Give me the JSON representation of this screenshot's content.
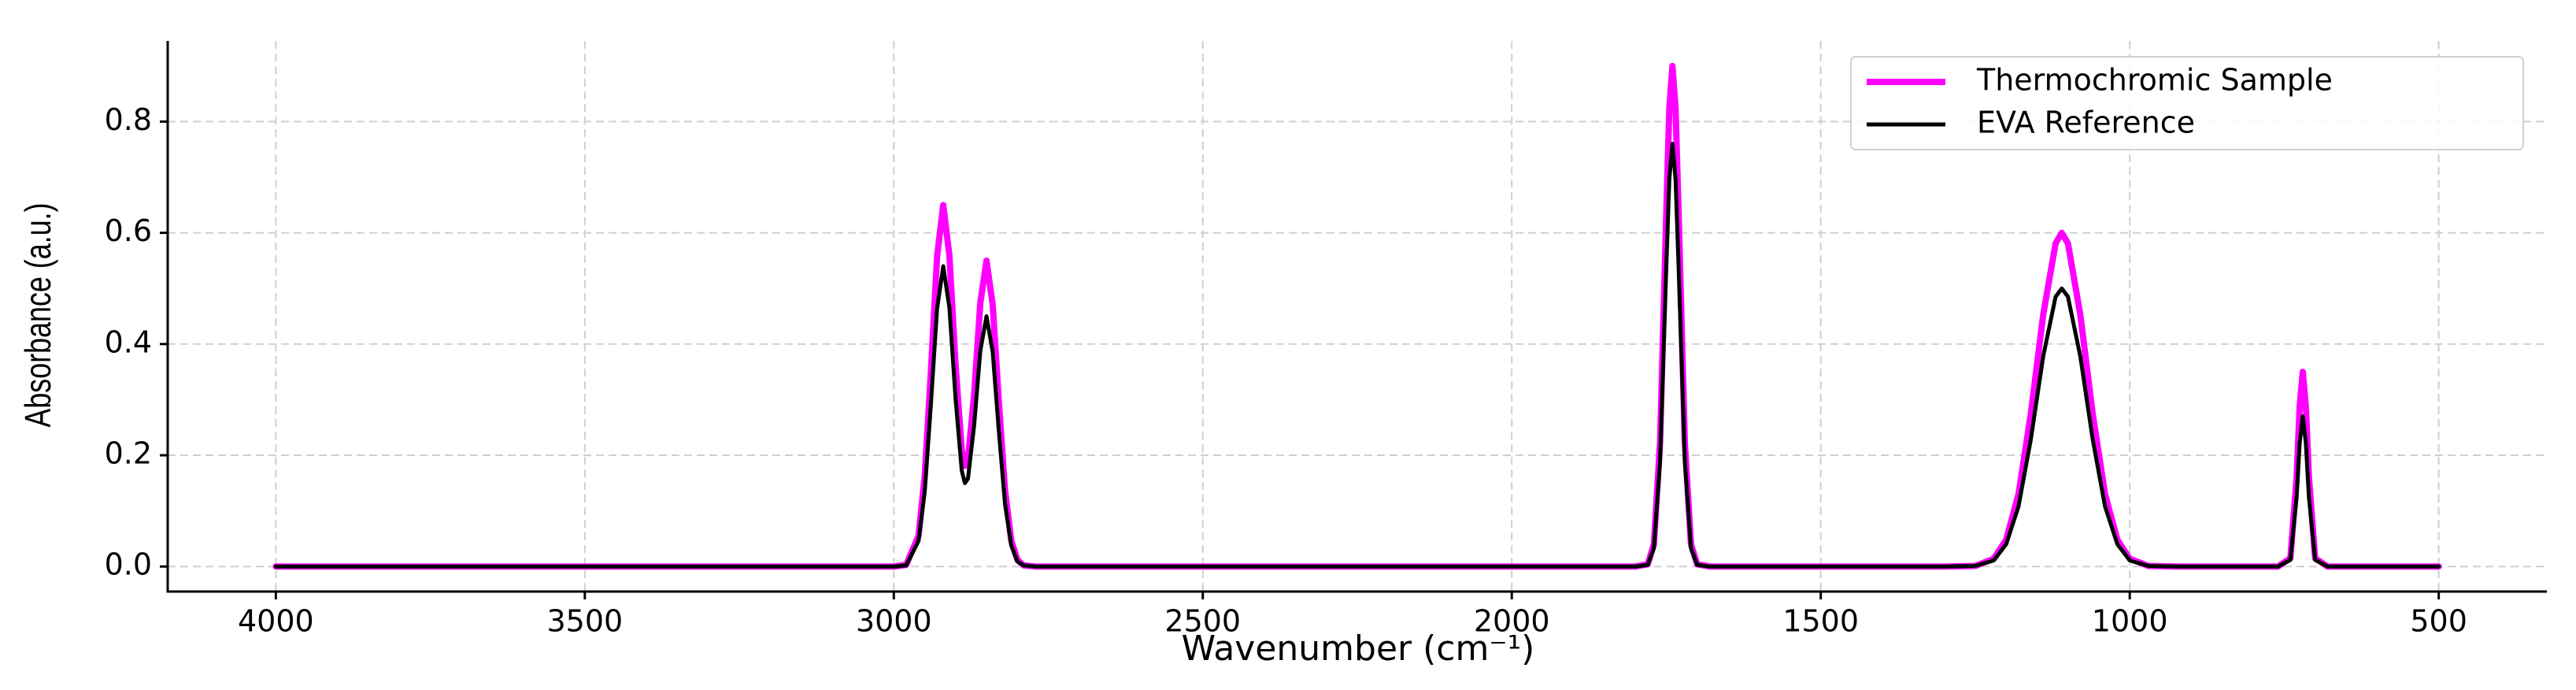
{
  "chart_data": {
    "type": "line",
    "xlabel": "Wavenumber (cm⁻¹)",
    "ylabel": "Absorbance (a.u.)",
    "x": [
      4000,
      3000,
      2980,
      2960,
      2950,
      2940,
      2930,
      2920,
      2910,
      2900,
      2890,
      2885,
      2880,
      2870,
      2860,
      2850,
      2840,
      2830,
      2820,
      2810,
      2800,
      2790,
      2770,
      1800,
      1780,
      1770,
      1760,
      1750,
      1745,
      1740,
      1735,
      1730,
      1720,
      1710,
      1700,
      1680,
      1300,
      1250,
      1220,
      1200,
      1180,
      1160,
      1140,
      1120,
      1110,
      1100,
      1080,
      1060,
      1040,
      1020,
      1000,
      970,
      920,
      760,
      740,
      730,
      725,
      720,
      715,
      710,
      700,
      680,
      500
    ],
    "series": [
      {
        "name": "Thermochromic Sample",
        "color": "#ff00ff",
        "values": [
          0,
          0,
          0.003,
          0.055,
          0.162,
          0.35,
          0.557,
          0.65,
          0.559,
          0.362,
          0.209,
          0.181,
          0.192,
          0.31,
          0.474,
          0.55,
          0.471,
          0.296,
          0.137,
          0.047,
          0.012,
          0.002,
          0,
          0,
          0.004,
          0.04,
          0.224,
          0.636,
          0.825,
          0.9,
          0.825,
          0.636,
          0.224,
          0.04,
          0.004,
          0,
          0,
          0.001,
          0.014,
          0.048,
          0.13,
          0.275,
          0.453,
          0.581,
          0.6,
          0.581,
          0.453,
          0.275,
          0.13,
          0.048,
          0.014,
          0.001,
          0,
          0,
          0.015,
          0.16,
          0.288,
          0.35,
          0.288,
          0.16,
          0.015,
          0,
          0
        ]
      },
      {
        "name": "EVA Reference",
        "color": "#000000",
        "values": [
          0,
          0,
          0.002,
          0.046,
          0.134,
          0.291,
          0.463,
          0.54,
          0.465,
          0.301,
          0.172,
          0.15,
          0.158,
          0.254,
          0.388,
          0.45,
          0.386,
          0.243,
          0.112,
          0.038,
          0.009,
          0.002,
          0,
          0,
          0.003,
          0.033,
          0.189,
          0.537,
          0.697,
          0.76,
          0.697,
          0.537,
          0.189,
          0.033,
          0.003,
          0,
          0,
          0.001,
          0.011,
          0.04,
          0.108,
          0.229,
          0.378,
          0.485,
          0.5,
          0.485,
          0.378,
          0.229,
          0.108,
          0.04,
          0.011,
          0.001,
          0,
          0,
          0.012,
          0.124,
          0.222,
          0.27,
          0.222,
          0.124,
          0.012,
          0,
          0
        ]
      }
    ],
    "xlim": [
      4175,
      325
    ],
    "xticks": [
      4000,
      3500,
      3000,
      2500,
      2000,
      1500,
      1000,
      500
    ],
    "ylim": [
      -0.045,
      0.945
    ],
    "yticks": [
      {
        "value": 0,
        "label": "0.0"
      },
      0.2,
      0.4,
      0.6,
      0.8
    ],
    "grid": true,
    "legend": "upper right"
  }
}
